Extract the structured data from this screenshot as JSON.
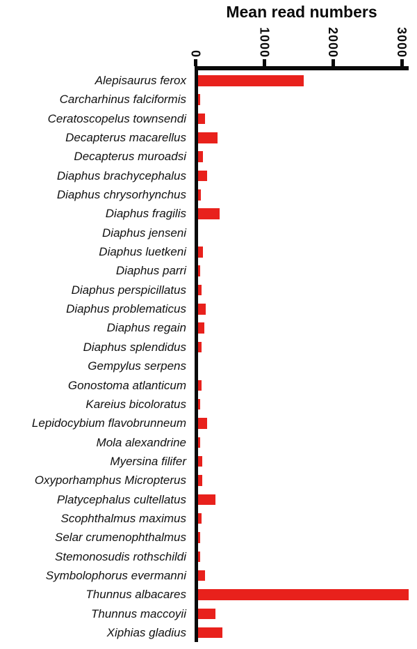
{
  "title": "Mean read numbers",
  "colors": {
    "bar": "#e8211c",
    "axis": "#0a0a0a",
    "background": "#ffffff"
  },
  "chart_data": {
    "type": "bar",
    "orientation": "horizontal",
    "title": "Mean read numbers",
    "xlabel": "Mean read numbers",
    "ylabel": "",
    "xlim": [
      0,
      3100
    ],
    "x_ticks": [
      0,
      1000,
      2000,
      3000
    ],
    "x_tick_labels": [
      "0",
      "1000",
      "2000",
      "3000"
    ],
    "tick_label_rotation": 90,
    "grid": false,
    "legend": "none",
    "categories": [
      "Alepisaurus ferox",
      "Carcharhinus falciformis",
      "Ceratoscopelus townsendi",
      "Decapterus macarellus",
      "Decapterus muroadsi",
      "Diaphus brachycephalus",
      "Diaphus chrysorhynchus",
      "Diaphus fragilis",
      "Diaphus jenseni",
      "Diaphus luetkeni",
      "Diaphus parri",
      "Diaphus perspicillatus",
      "Diaphus problematicus",
      "Diaphus regain",
      "Diaphus splendidus",
      "Gempylus serpens",
      "Gonostoma atlanticum",
      "Kareius bicoloratus",
      "Lepidocybium flavobrunneum",
      "Mola alexandrine",
      "Myersina filifer",
      "Oxyporhamphus Micropterus",
      "Platycephalus cultellatus",
      "Scophthalmus maximus",
      "Selar crumenophthalmus",
      "Stemonosudis rothschildi",
      "Symbolophorus evermanni",
      "Thunnus albacares",
      "Thunnus maccoyii",
      "Xiphias gladius"
    ],
    "values": [
      1570,
      70,
      135,
      320,
      110,
      165,
      80,
      345,
      35,
      105,
      70,
      85,
      145,
      125,
      90,
      40,
      85,
      70,
      165,
      70,
      100,
      100,
      290,
      90,
      70,
      70,
      135,
      3100,
      285,
      390
    ]
  }
}
